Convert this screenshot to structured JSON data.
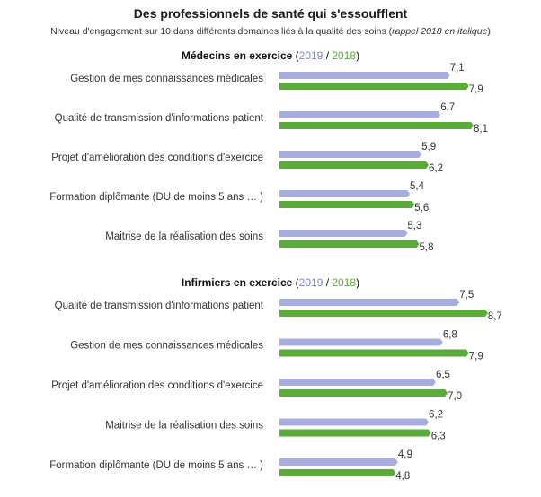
{
  "title": "Des professionnels de santé qui s'essoufflent",
  "subtitle_main": "Niveau d'engagement sur 10 dans différents domaines liés à la qualité des soins (",
  "subtitle_italic": "rappel 2018 en italique",
  "subtitle_close": ")",
  "colors": {
    "series_2019": "#a9acdf",
    "series_2018": "#5aab3a",
    "legend_2019": "#7f86c8",
    "legend_2018": "#5aab3a"
  },
  "chart_data": [
    {
      "type": "bar",
      "title": "Médecins en exercice",
      "legend_open": "(",
      "legend_sep": " / ",
      "legend_close": ")",
      "categories": [
        "Gestion de mes connaissances médicales",
        "Qualité de transmission d'informations patient",
        "Projet d'amélioration des conditions d'exercice",
        "Formation diplômante (DU de moins 5 ans … )",
        "Maitrise de la réalisation des soins"
      ],
      "series": [
        {
          "name": "2019",
          "values": [
            7.1,
            6.7,
            5.9,
            5.4,
            5.3
          ],
          "labels": [
            "7,1",
            "6,7",
            "5,9",
            "5,4",
            "5,3"
          ]
        },
        {
          "name": "2018",
          "values": [
            7.9,
            8.1,
            6.2,
            5.6,
            5.8
          ],
          "labels": [
            "7,9",
            "8,1",
            "6,2",
            "5,6",
            "5,8"
          ]
        }
      ],
      "xlim": [
        0,
        10
      ],
      "grid": false
    },
    {
      "type": "bar",
      "title": "Infirmiers en exercice",
      "legend_open": "(",
      "legend_sep": " / ",
      "legend_close": ")",
      "categories": [
        "Qualité de transmission d'informations patient",
        "Gestion de mes connaissances médicales",
        "Projet d'amélioration des conditions d'exercice",
        "Maitrise de la réalisation des soins",
        "Formation diplômante (DU de moins 5 ans … )"
      ],
      "series": [
        {
          "name": "2019",
          "values": [
            7.5,
            6.8,
            6.5,
            6.2,
            4.9
          ],
          "labels": [
            "7,5",
            "6,8",
            "6,5",
            "6,2",
            "4,9"
          ]
        },
        {
          "name": "2018",
          "values": [
            8.7,
            7.9,
            7.0,
            6.3,
            4.8
          ],
          "labels": [
            "8,7",
            "7,9",
            "7,0",
            "6,3",
            "4,8"
          ]
        }
      ],
      "xlim": [
        0,
        10
      ],
      "grid": false
    }
  ]
}
